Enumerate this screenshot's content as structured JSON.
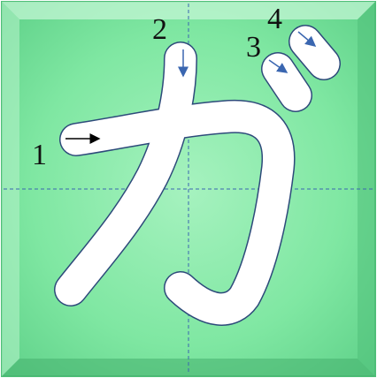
{
  "character": {
    "glyph": "ガ",
    "stroke_count": 4
  },
  "strokes": [
    {
      "number": "1",
      "direction": "right"
    },
    {
      "number": "2",
      "direction": "down"
    },
    {
      "number": "3",
      "direction": "down-right"
    },
    {
      "number": "4",
      "direction": "down-right"
    }
  ],
  "colors": {
    "background": "#77e39c",
    "character_fill": "#ffffff",
    "character_outline": "#2d4a7a",
    "guide_lines": "#3a66b0",
    "arrow_stroke1": "#000000",
    "arrow_other": "#3a66b0",
    "number_text": "#111111"
  },
  "guides": {
    "style": "dashed",
    "lines": [
      "horizontal-center",
      "vertical-center"
    ]
  }
}
